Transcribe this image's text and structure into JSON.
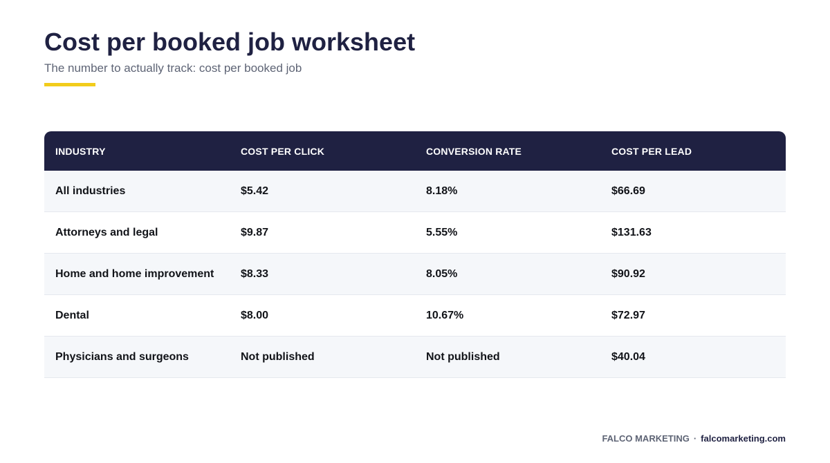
{
  "header": {
    "title": "Cost per booked job worksheet",
    "subtitle": "The number to actually track: cost per booked job"
  },
  "colors": {
    "navy": "#1f2142",
    "accent": "#f2cc1b",
    "row_shade": "#f5f7fa"
  },
  "table": {
    "columns": [
      "INDUSTRY",
      "COST PER CLICK",
      "CONVERSION RATE",
      "COST PER LEAD"
    ],
    "rows": [
      [
        "All industries",
        "$5.42",
        "8.18%",
        "$66.69"
      ],
      [
        "Attorneys and legal",
        "$9.87",
        "5.55%",
        "$131.63"
      ],
      [
        "Home and home improvement",
        "$8.33",
        "8.05%",
        "$90.92"
      ],
      [
        "Dental",
        "$8.00",
        "10.67%",
        "$72.97"
      ],
      [
        "Physicians and surgeons",
        "Not published",
        "Not published",
        "$40.04"
      ]
    ]
  },
  "footer": {
    "brand": "FALCO MARKETING",
    "separator": "·",
    "site": "falcomarketing.com"
  }
}
